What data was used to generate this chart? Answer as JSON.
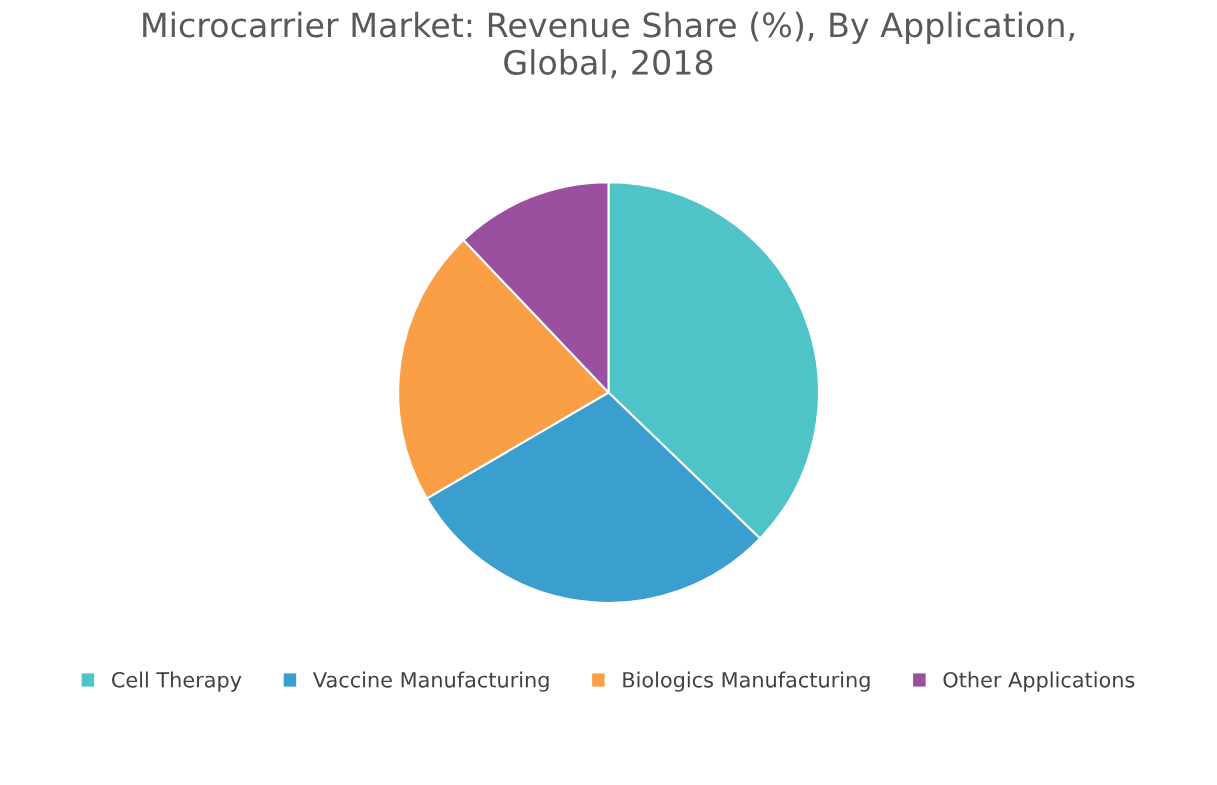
{
  "chart_data": {
    "type": "pie",
    "title": "Microcarrier Market: Revenue Share (%), By Application,\nGlobal, 2018",
    "categories": [
      "Cell Therapy",
      "Vaccine Manufacturing",
      "Biologics Manufacturing",
      "Other Applications"
    ],
    "values": [
      37.2,
      29.4,
      21.3,
      12.1
    ],
    "colors": [
      "#4fc4c8",
      "#3a9ecf",
      "#fa9f45",
      "#9b4f9f"
    ],
    "legend": "bottom"
  }
}
